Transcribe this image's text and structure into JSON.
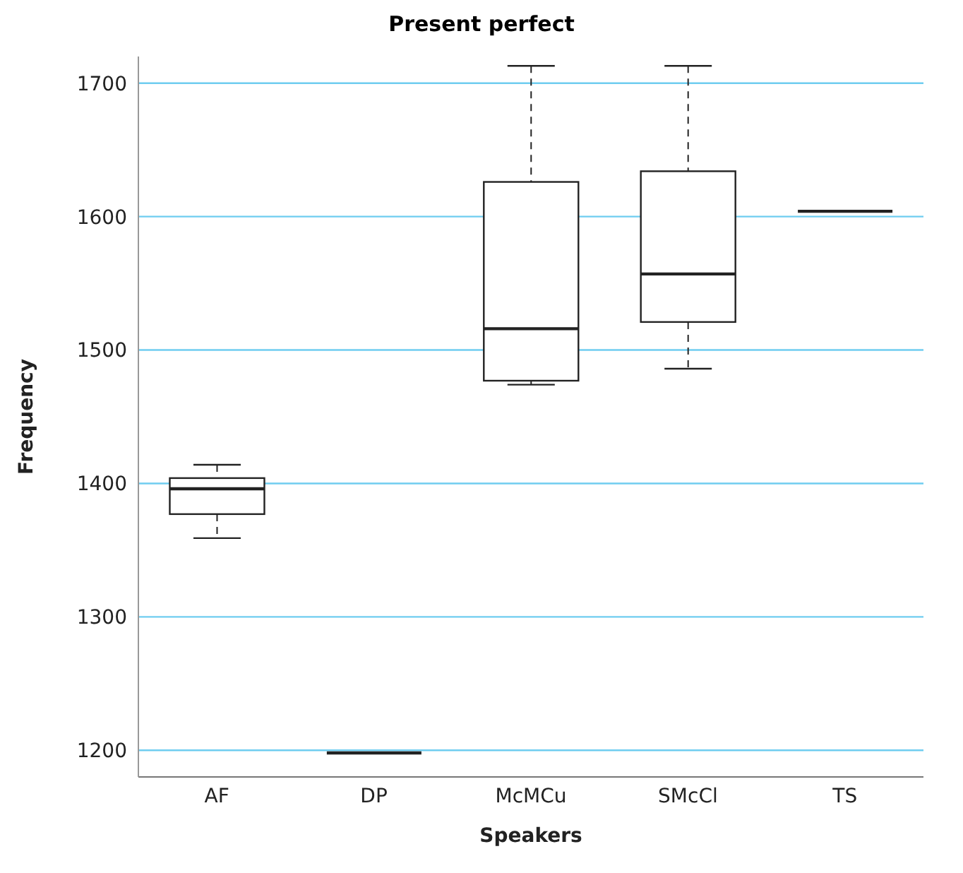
{
  "chart_data": {
    "type": "box",
    "title": "Present perfect",
    "xlabel": "Speakers",
    "ylabel": "Frequency",
    "categories": [
      "AF",
      "DP",
      "McMCu",
      "SMcCl",
      "TS"
    ],
    "series": [
      {
        "color": "#222222",
        "boxes": [
          {
            "low": 1359,
            "q1": 1377,
            "median": 1396,
            "q3": 1404,
            "high": 1414
          },
          {
            "low": 1198,
            "q1": 1198,
            "median": 1198,
            "q3": 1198,
            "high": 1198
          },
          {
            "low": 1474,
            "q1": 1477,
            "median": 1516,
            "q3": 1626,
            "high": 1713
          },
          {
            "low": 1486,
            "q1": 1521,
            "median": 1557,
            "q3": 1634,
            "high": 1713
          },
          {
            "low": 1604,
            "q1": 1604,
            "median": 1604,
            "q3": 1604,
            "high": 1604
          }
        ]
      }
    ],
    "ylim": [
      1180,
      1720
    ],
    "yticks": [
      1200,
      1300,
      1400,
      1500,
      1600,
      1700
    ],
    "grid": "y"
  }
}
